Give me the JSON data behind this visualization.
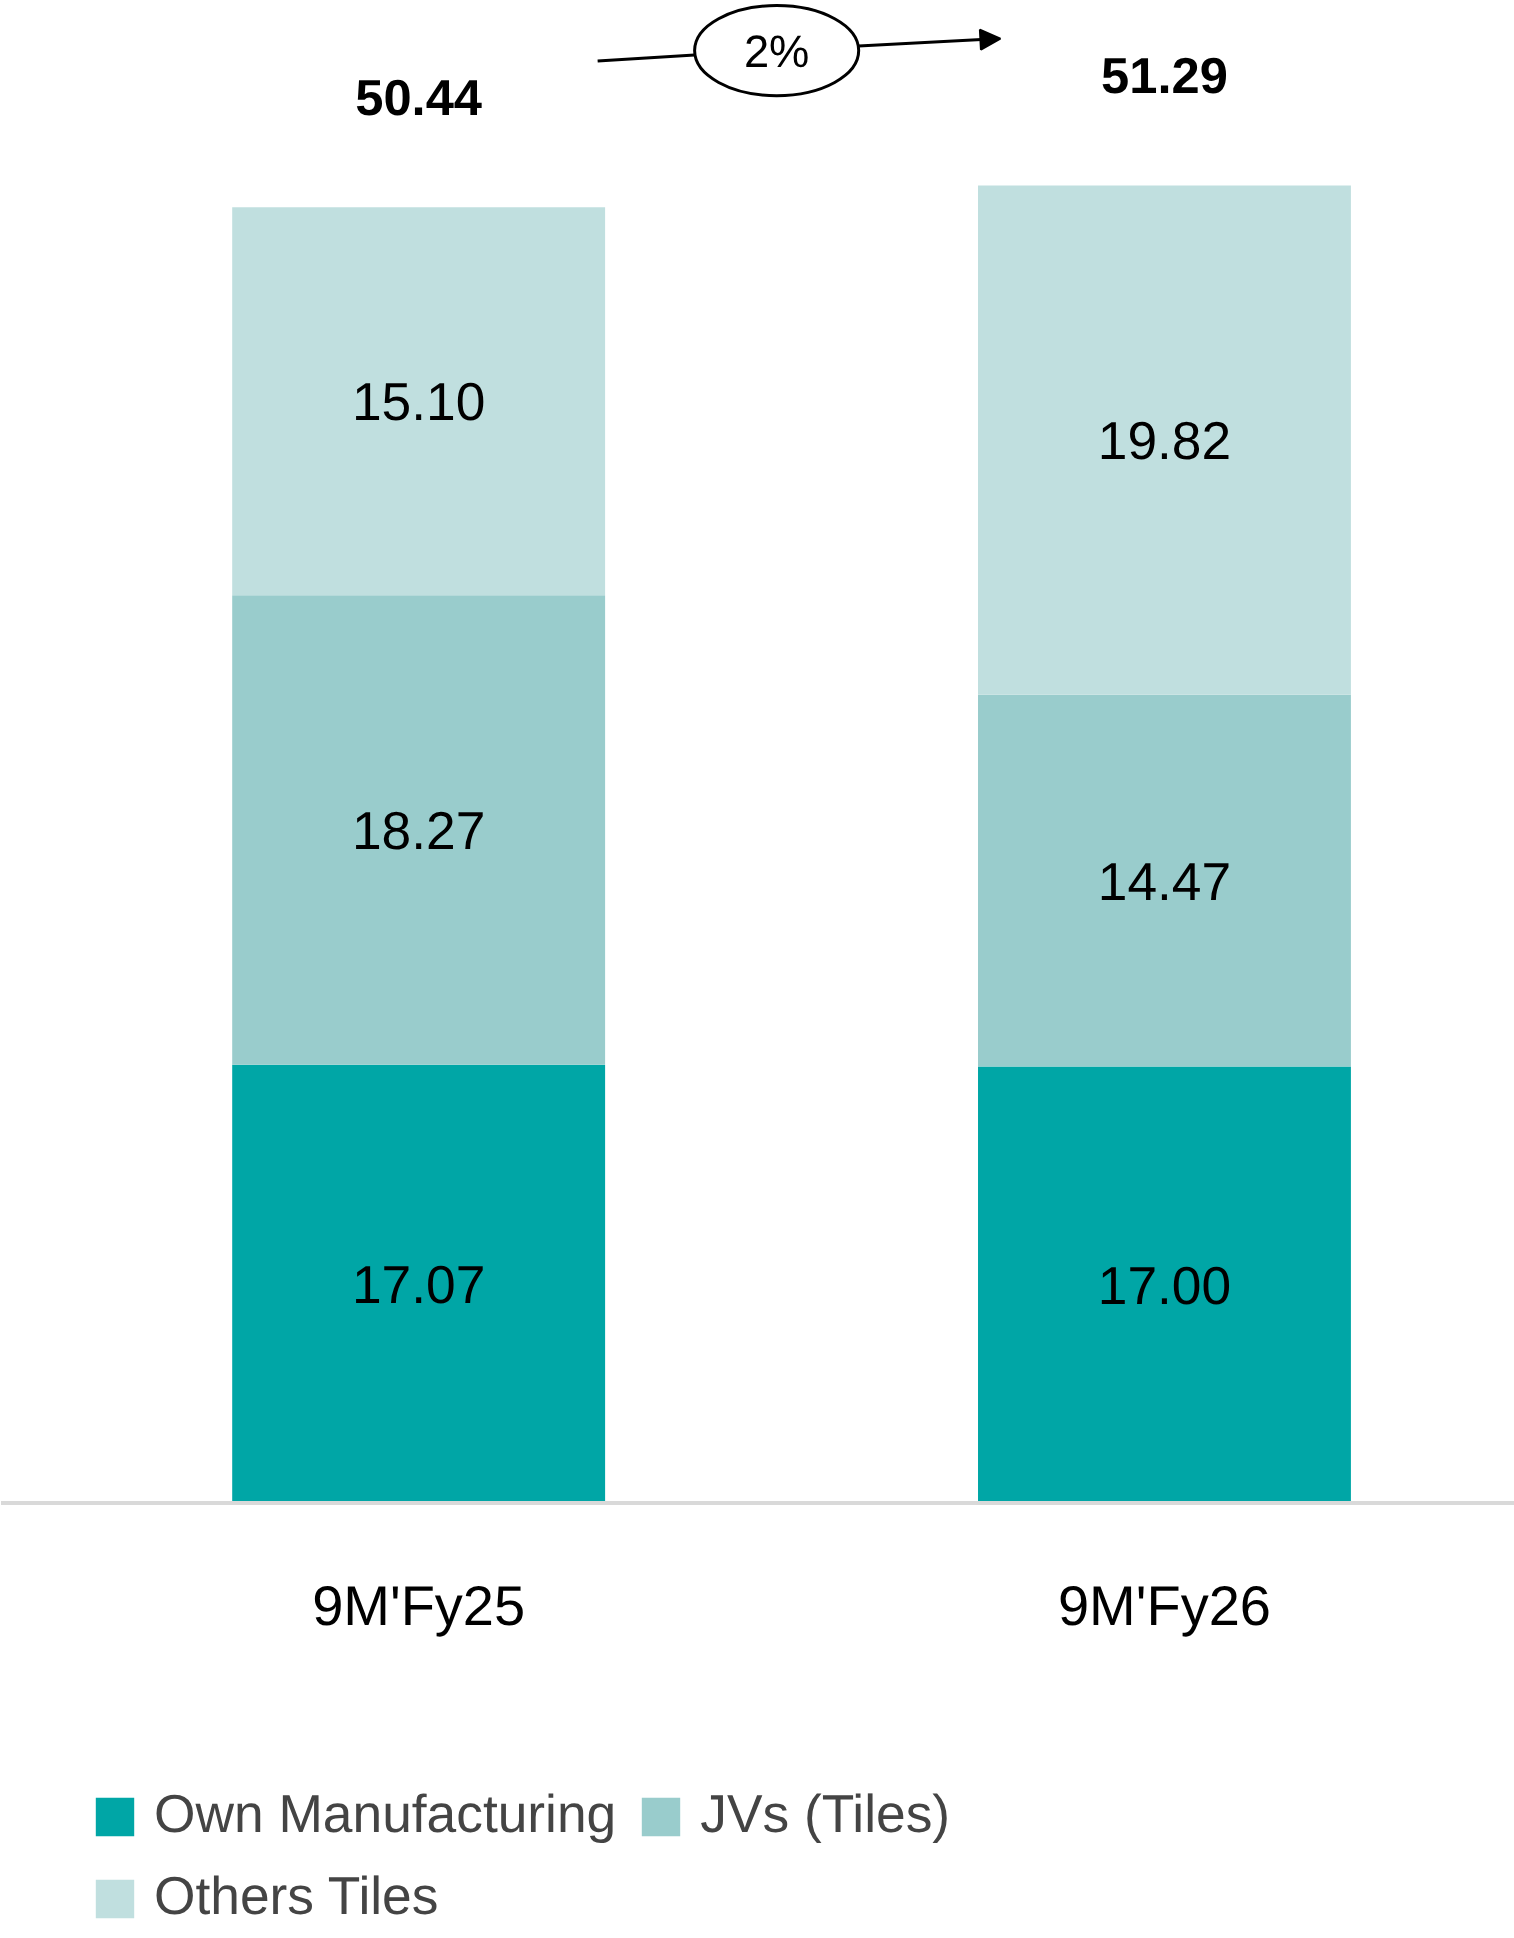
{
  "chart_data": {
    "type": "bar",
    "stacked": true,
    "categories": [
      "9M'Fy25",
      "9M'Fy26"
    ],
    "series": [
      {
        "name": "Own Manufacturing",
        "color": "#00a6a6",
        "values": [
          17.07,
          17.0
        ],
        "value_labels": [
          "17.07",
          "17.00"
        ]
      },
      {
        "name": "JVs (Tiles)",
        "color": "#99cccc",
        "values": [
          18.27,
          14.47
        ],
        "value_labels": [
          "18.27",
          "14.47"
        ]
      },
      {
        "name": "Others Tiles",
        "color": "#c0dfdf",
        "values": [
          15.1,
          19.82
        ],
        "value_labels": [
          "15.10",
          "19.82"
        ]
      }
    ],
    "totals": [
      "50.44",
      "51.29"
    ],
    "annotations": [
      "2%"
    ],
    "legend": "bottom"
  }
}
